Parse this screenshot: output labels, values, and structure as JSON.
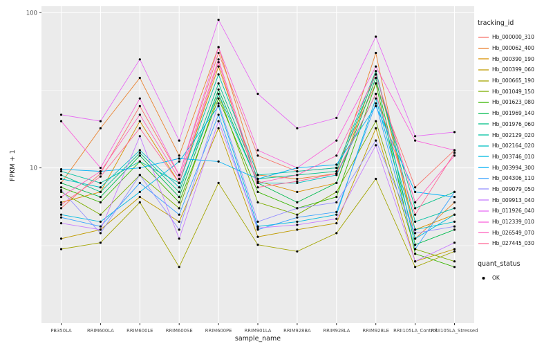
{
  "figure": {
    "background": "#FFFFFF",
    "panel_background": "#EBEBEB",
    "grid_color": "#FFFFFF",
    "tick_color": "#333333",
    "tick_label_color": "#4D4D4D",
    "point_color": "#000000"
  },
  "axes": {
    "x_title": "sample_name",
    "y_title": "FPKM + 1"
  },
  "legend": {
    "tracking_title": "tracking_id",
    "quant_title": "quant_status",
    "quant_items": [
      "OK"
    ]
  },
  "chart_data": {
    "type": "line",
    "title": "",
    "xlabel": "sample_name",
    "ylabel": "FPKM + 1",
    "y_scale": "log10",
    "ylim": [
      1,
      110
    ],
    "y_ticks": [
      10,
      100
    ],
    "y_minor_gridlines": [
      3.16,
      31.6
    ],
    "grid": true,
    "legend_position": "right",
    "quant_status": "OK",
    "categories": [
      "PB350LA",
      "RRIM600LA",
      "RRIM600LE",
      "RRIM600SE",
      "RRIM600PE",
      "RRIM901LA",
      "RRIM928BA",
      "RRIM928LA",
      "RRIM928LE",
      "RRII105LA_Control",
      "RRII105LA_Stressed"
    ],
    "series": [
      {
        "name": "Hb_000000_310",
        "color": "#F8766D",
        "values": [
          5.5,
          9.2,
          25,
          9.0,
          55,
          12,
          9.5,
          10,
          35,
          7.5,
          13
        ]
      },
      {
        "name": "Hb_000062_400",
        "color": "#EA8331",
        "values": [
          8.0,
          18,
          38,
          12,
          60,
          9.0,
          8.5,
          9.2,
          55,
          3.5,
          6.0
        ]
      },
      {
        "name": "Hb_000390_190",
        "color": "#D89000",
        "values": [
          6.0,
          7.0,
          20,
          8.0,
          45,
          8.2,
          7.0,
          8.0,
          42,
          4.0,
          5.0
        ]
      },
      {
        "name": "Hb_000399_060",
        "color": "#C09B00",
        "values": [
          3.5,
          4.0,
          6.5,
          4.5,
          18,
          3.6,
          4.0,
          4.4,
          18,
          2.5,
          3.0
        ]
      },
      {
        "name": "Hb_000665_190",
        "color": "#A3A500",
        "values": [
          3.0,
          3.3,
          6.0,
          2.3,
          8.0,
          3.2,
          2.9,
          3.8,
          8.5,
          2.3,
          2.9
        ]
      },
      {
        "name": "Hb_001049_150",
        "color": "#7CAE00",
        "values": [
          7.0,
          5.0,
          9.0,
          5.5,
          30,
          6.0,
          5.0,
          7.0,
          20,
          3.0,
          2.5
        ]
      },
      {
        "name": "Hb_001623_080",
        "color": "#39B600",
        "values": [
          7.5,
          6.0,
          11,
          6.0,
          28,
          7.0,
          5.5,
          6.5,
          35,
          2.8,
          2.3
        ]
      },
      {
        "name": "Hb_001969_140",
        "color": "#00BB4E",
        "values": [
          8.0,
          6.5,
          12,
          6.5,
          32,
          8.0,
          6.0,
          8.0,
          38,
          3.2,
          4.0
        ]
      },
      {
        "name": "Hb_001976_060",
        "color": "#00C087",
        "values": [
          9.0,
          7.0,
          12.5,
          7.0,
          35,
          8.5,
          9.0,
          9.5,
          40,
          5.5,
          7.0
        ]
      },
      {
        "name": "Hb_002129_020",
        "color": "#00C1A2",
        "values": [
          9.5,
          8.0,
          11,
          8.0,
          40,
          9.0,
          9.5,
          10,
          42,
          4.5,
          5.5
        ]
      },
      {
        "name": "Hb_002164_020",
        "color": "#00BFC4",
        "values": [
          8.5,
          7.5,
          13,
          7.5,
          30,
          8.0,
          8.0,
          9.0,
          30,
          4.0,
          4.5
        ]
      },
      {
        "name": "Hb_003746_010",
        "color": "#00BAE0",
        "values": [
          5.0,
          4.5,
          7.0,
          11,
          25,
          4.2,
          4.5,
          5.0,
          28,
          3.5,
          5.0
        ]
      },
      {
        "name": "Hb_003994_300",
        "color": "#00B0F6",
        "values": [
          9.8,
          9.5,
          10,
          11.5,
          11,
          8.5,
          10,
          10.5,
          25,
          7.0,
          6.5
        ]
      },
      {
        "name": "Hb_004306_110",
        "color": "#35A2FF",
        "values": [
          4.8,
          4.2,
          8.0,
          5.0,
          22,
          4.0,
          4.8,
          5.2,
          26,
          3.0,
          7.0
        ]
      },
      {
        "name": "Hb_009079_050",
        "color": "#9590FF",
        "values": [
          7.2,
          3.8,
          9.0,
          4.0,
          26,
          4.5,
          5.5,
          6.0,
          15,
          3.8,
          4.2
        ]
      },
      {
        "name": "Hb_009913_040",
        "color": "#C77CFF",
        "values": [
          4.4,
          4.0,
          16,
          3.5,
          20,
          4.1,
          4.3,
          4.7,
          14,
          2.5,
          3.3
        ]
      },
      {
        "name": "Hb_011926_040",
        "color": "#E76BF3",
        "values": [
          22,
          20,
          50,
          15,
          90,
          30,
          18,
          21,
          70,
          16,
          17
        ]
      },
      {
        "name": "Hb_012339_010",
        "color": "#FA62DB",
        "values": [
          20,
          10,
          28,
          9.0,
          60,
          13,
          10,
          15,
          45,
          15,
          13
        ]
      },
      {
        "name": "Hb_026549_070",
        "color": "#FF62BC",
        "values": [
          6.5,
          9.5,
          22,
          8.5,
          50,
          8.0,
          9.0,
          12,
          40,
          6.0,
          12
        ]
      },
      {
        "name": "Hb_027445_030",
        "color": "#FF6A98",
        "values": [
          5.8,
          8.8,
          18,
          8.0,
          48,
          7.5,
          8.2,
          9.2,
          30,
          5.0,
          12.5
        ]
      }
    ]
  }
}
